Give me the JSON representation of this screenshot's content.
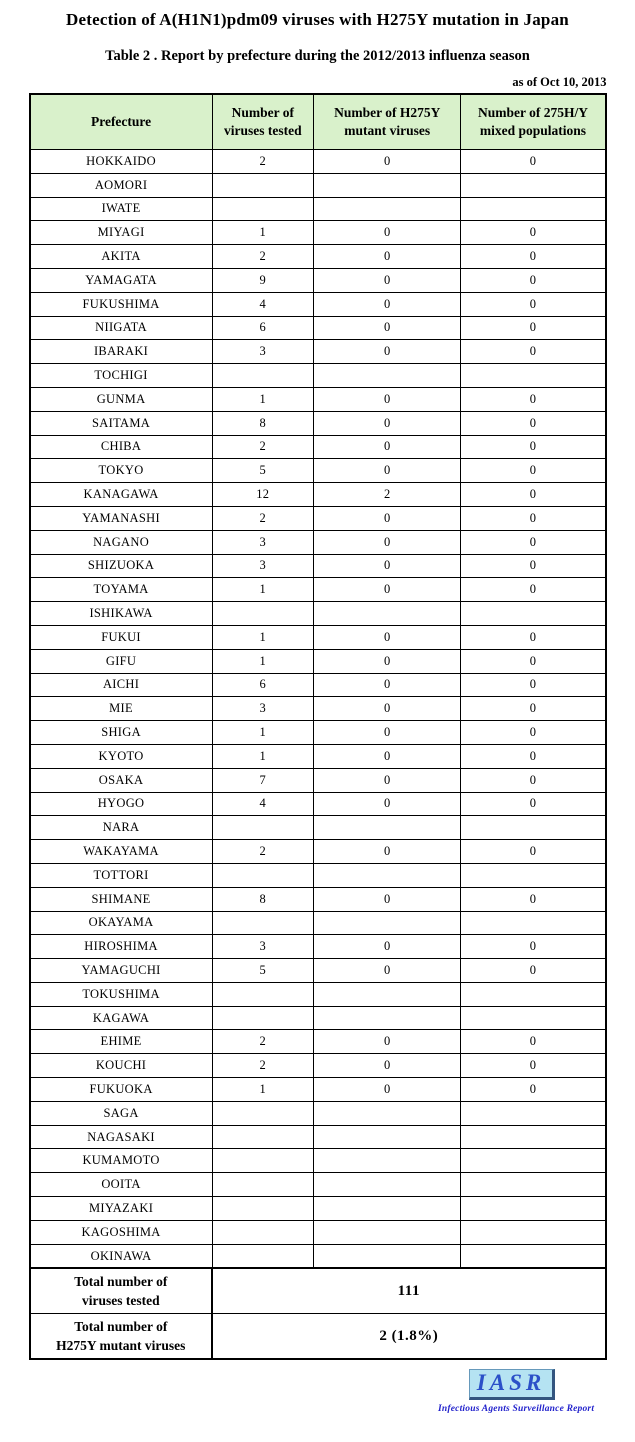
{
  "title": "Detection of A(H1N1)pdm09 viruses with H275Y mutation in Japan",
  "subtitle": "Table 2 . Report by prefecture during the 2012/2013 influenza season",
  "as_of": "as of Oct 10, 2013",
  "colors": {
    "header_bg": "#d9f1cb",
    "table_border": "#000000",
    "logo_bg": "#b5e3f2",
    "logo_shadow": "#33557f",
    "logo_text": "#2b50c8",
    "tagline": "#2222cc"
  },
  "table": {
    "headers": [
      "Prefecture",
      "Number of viruses tested",
      "Number of H275Y mutant viruses",
      "Number of 275H/Y mixed populations"
    ],
    "rows": [
      {
        "prefecture": "HOKKAIDO",
        "tested": "2",
        "mutant": "0",
        "mixed": "0"
      },
      {
        "prefecture": "AOMORI",
        "tested": "",
        "mutant": "",
        "mixed": ""
      },
      {
        "prefecture": "IWATE",
        "tested": "",
        "mutant": "",
        "mixed": ""
      },
      {
        "prefecture": "MIYAGI",
        "tested": "1",
        "mutant": "0",
        "mixed": "0"
      },
      {
        "prefecture": "AKITA",
        "tested": "2",
        "mutant": "0",
        "mixed": "0"
      },
      {
        "prefecture": "YAMAGATA",
        "tested": "9",
        "mutant": "0",
        "mixed": "0"
      },
      {
        "prefecture": "FUKUSHIMA",
        "tested": "4",
        "mutant": "0",
        "mixed": "0"
      },
      {
        "prefecture": "NIIGATA",
        "tested": "6",
        "mutant": "0",
        "mixed": "0"
      },
      {
        "prefecture": "IBARAKI",
        "tested": "3",
        "mutant": "0",
        "mixed": "0"
      },
      {
        "prefecture": "TOCHIGI",
        "tested": "",
        "mutant": "",
        "mixed": ""
      },
      {
        "prefecture": "GUNMA",
        "tested": "1",
        "mutant": "0",
        "mixed": "0"
      },
      {
        "prefecture": "SAITAMA",
        "tested": "8",
        "mutant": "0",
        "mixed": "0"
      },
      {
        "prefecture": "CHIBA",
        "tested": "2",
        "mutant": "0",
        "mixed": "0"
      },
      {
        "prefecture": "TOKYO",
        "tested": "5",
        "mutant": "0",
        "mixed": "0"
      },
      {
        "prefecture": "KANAGAWA",
        "tested": "12",
        "mutant": "2",
        "mixed": "0"
      },
      {
        "prefecture": "YAMANASHI",
        "tested": "2",
        "mutant": "0",
        "mixed": "0"
      },
      {
        "prefecture": "NAGANO",
        "tested": "3",
        "mutant": "0",
        "mixed": "0"
      },
      {
        "prefecture": "SHIZUOKA",
        "tested": "3",
        "mutant": "0",
        "mixed": "0"
      },
      {
        "prefecture": "TOYAMA",
        "tested": "1",
        "mutant": "0",
        "mixed": "0"
      },
      {
        "prefecture": "ISHIKAWA",
        "tested": "",
        "mutant": "",
        "mixed": ""
      },
      {
        "prefecture": "FUKUI",
        "tested": "1",
        "mutant": "0",
        "mixed": "0"
      },
      {
        "prefecture": "GIFU",
        "tested": "1",
        "mutant": "0",
        "mixed": "0"
      },
      {
        "prefecture": "AICHI",
        "tested": "6",
        "mutant": "0",
        "mixed": "0"
      },
      {
        "prefecture": "MIE",
        "tested": "3",
        "mutant": "0",
        "mixed": "0"
      },
      {
        "prefecture": "SHIGA",
        "tested": "1",
        "mutant": "0",
        "mixed": "0"
      },
      {
        "prefecture": "KYOTO",
        "tested": "1",
        "mutant": "0",
        "mixed": "0"
      },
      {
        "prefecture": "OSAKA",
        "tested": "7",
        "mutant": "0",
        "mixed": "0"
      },
      {
        "prefecture": "HYOGO",
        "tested": "4",
        "mutant": "0",
        "mixed": "0"
      },
      {
        "prefecture": "NARA",
        "tested": "",
        "mutant": "",
        "mixed": ""
      },
      {
        "prefecture": "WAKAYAMA",
        "tested": "2",
        "mutant": "0",
        "mixed": "0"
      },
      {
        "prefecture": "TOTTORI",
        "tested": "",
        "mutant": "",
        "mixed": ""
      },
      {
        "prefecture": "SHIMANE",
        "tested": "8",
        "mutant": "0",
        "mixed": "0"
      },
      {
        "prefecture": "OKAYAMA",
        "tested": "",
        "mutant": "",
        "mixed": ""
      },
      {
        "prefecture": "HIROSHIMA",
        "tested": "3",
        "mutant": "0",
        "mixed": "0"
      },
      {
        "prefecture": "YAMAGUCHI",
        "tested": "5",
        "mutant": "0",
        "mixed": "0"
      },
      {
        "prefecture": "TOKUSHIMA",
        "tested": "",
        "mutant": "",
        "mixed": ""
      },
      {
        "prefecture": "KAGAWA",
        "tested": "",
        "mutant": "",
        "mixed": ""
      },
      {
        "prefecture": "EHIME",
        "tested": "2",
        "mutant": "0",
        "mixed": "0"
      },
      {
        "prefecture": "KOUCHI",
        "tested": "2",
        "mutant": "0",
        "mixed": "0"
      },
      {
        "prefecture": "FUKUOKA",
        "tested": "1",
        "mutant": "0",
        "mixed": "0"
      },
      {
        "prefecture": "SAGA",
        "tested": "",
        "mutant": "",
        "mixed": ""
      },
      {
        "prefecture": "NAGASAKI",
        "tested": "",
        "mutant": "",
        "mixed": ""
      },
      {
        "prefecture": "KUMAMOTO",
        "tested": "",
        "mutant": "",
        "mixed": ""
      },
      {
        "prefecture": "OOITA",
        "tested": "",
        "mutant": "",
        "mixed": ""
      },
      {
        "prefecture": "MIYAZAKI",
        "tested": "",
        "mutant": "",
        "mixed": ""
      },
      {
        "prefecture": "KAGOSHIMA",
        "tested": "",
        "mutant": "",
        "mixed": ""
      },
      {
        "prefecture": "OKINAWA",
        "tested": "",
        "mutant": "",
        "mixed": ""
      }
    ],
    "totals": [
      {
        "label_line1": "Total number of",
        "label_line2": "viruses tested",
        "value": "111"
      },
      {
        "label_line1": "Total number of",
        "label_line2": "H275Y mutant viruses",
        "value": "2 (1.8%)"
      }
    ]
  },
  "logo": {
    "text": "IASR",
    "tagline": "Infectious Agents Surveillance Report"
  }
}
